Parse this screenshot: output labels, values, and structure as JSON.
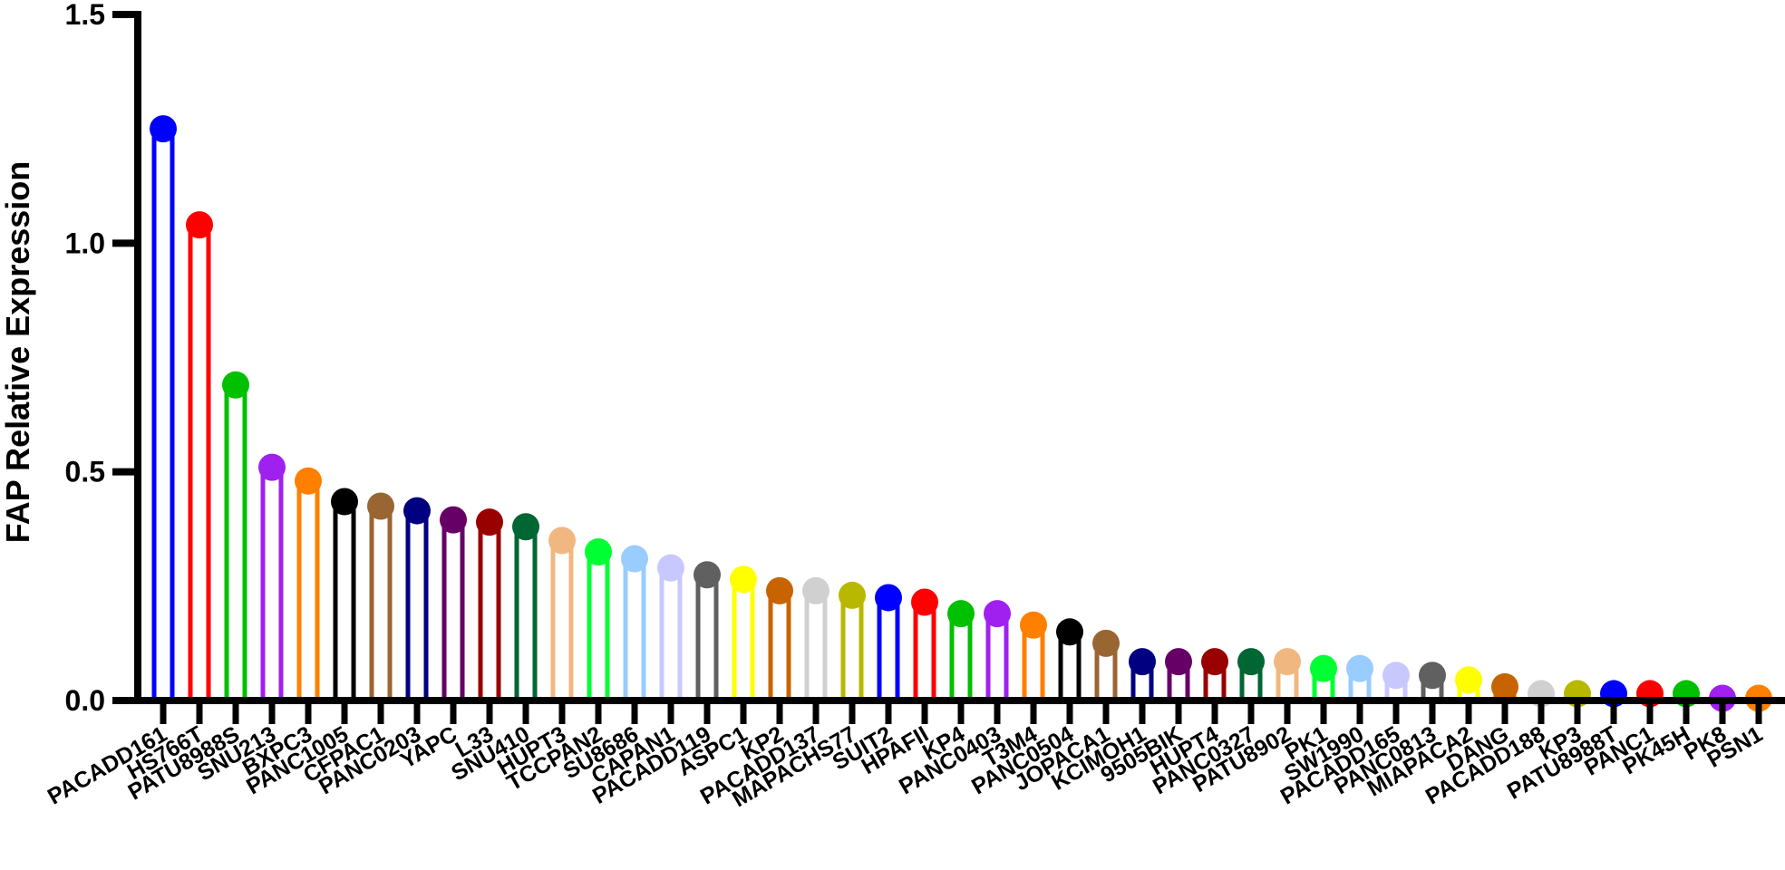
{
  "chart_data": {
    "type": "bar",
    "style": "lollipop",
    "ylabel": "FAP Relative Expression",
    "ylim": [
      0,
      1.5
    ],
    "yticks": [
      "0.0",
      "0.5",
      "1.0",
      "1.5"
    ],
    "categories": [
      "PACADD161",
      "HS766T",
      "PATU8988S",
      "SNU213",
      "BXPC3",
      "PANC1005",
      "CFPAC1",
      "PANC0203",
      "YAPC",
      "L33",
      "SNU410",
      "HUPT3",
      "TCCPAN2",
      "SU8686",
      "CAPAN1",
      "PACADD119",
      "ASPC1",
      "KP2",
      "PACADD137",
      "MAPACHS77",
      "SUIT2",
      "HPAFII",
      "KP4",
      "PANC0403",
      "T3M4",
      "PANC0504",
      "JOPACA1",
      "KCIMOH1",
      "9505BIK",
      "HUPT4",
      "PANC0327",
      "PATU8902",
      "PK1",
      "SW1990",
      "PACADD165",
      "PANC0813",
      "MIAPACA2",
      "DANG",
      "PACADD188",
      "KP3",
      "PATU8988T",
      "PANC1",
      "PK45H",
      "PK8",
      "PSN1"
    ],
    "values": [
      1.25,
      1.04,
      0.69,
      0.51,
      0.48,
      0.435,
      0.425,
      0.415,
      0.395,
      0.39,
      0.38,
      0.35,
      0.325,
      0.31,
      0.29,
      0.275,
      0.265,
      0.24,
      0.24,
      0.23,
      0.225,
      0.215,
      0.19,
      0.19,
      0.165,
      0.15,
      0.125,
      0.085,
      0.085,
      0.085,
      0.085,
      0.085,
      0.07,
      0.07,
      0.055,
      0.055,
      0.045,
      0.03,
      0.015,
      0.015,
      0.015,
      0.015,
      0.015,
      0.005,
      0.005
    ],
    "colors": [
      "#0000ff",
      "#ff0000",
      "#00c000",
      "#a020f0",
      "#ff8000",
      "#000000",
      "#996633",
      "#000080",
      "#660066",
      "#990000",
      "#006633",
      "#f0b880",
      "#00ff33",
      "#99ccff",
      "#c8c8ff",
      "#606060",
      "#ffff00",
      "#c86400",
      "#d0d0d0",
      "#b8b800",
      "#0000ff",
      "#ff0000",
      "#00c000",
      "#a020f0",
      "#ff8000",
      "#000000",
      "#996633",
      "#000080",
      "#660066",
      "#990000",
      "#006633",
      "#f0b880",
      "#00ff33",
      "#99ccff",
      "#c8c8ff",
      "#606060",
      "#ffff00",
      "#c86400",
      "#d0d0d0",
      "#b8b800",
      "#0000ff",
      "#ff0000",
      "#00c000",
      "#a020f0",
      "#ff8000"
    ],
    "grid": false,
    "legend": "none"
  }
}
